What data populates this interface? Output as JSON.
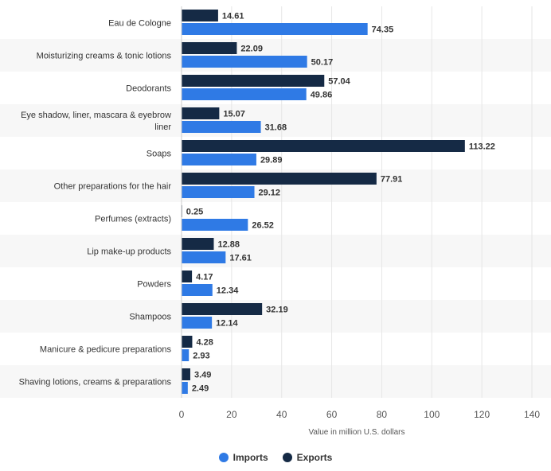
{
  "chart_data": {
    "type": "bar",
    "orientation": "horizontal",
    "categories": [
      "Eau de Cologne",
      "Moisturizing creams & tonic lotions",
      "Deodorants",
      "Eye shadow, liner, mascara & eyebrow liner",
      "Soaps",
      "Other preparations for the hair",
      "Perfumes (extracts)",
      "Lip make-up products",
      "Powders",
      "Shampoos",
      "Manicure & pedicure preparations",
      "Shaving lotions, creams & preparations"
    ],
    "series": [
      {
        "name": "Exports",
        "color": "#152a45",
        "values": [
          14.61,
          22.09,
          57.04,
          15.07,
          113.22,
          77.91,
          0.25,
          12.88,
          4.17,
          32.19,
          4.28,
          3.49
        ]
      },
      {
        "name": "Imports",
        "color": "#2f7ae5",
        "values": [
          74.35,
          50.17,
          49.86,
          31.68,
          29.89,
          29.12,
          26.52,
          17.61,
          12.34,
          12.14,
          2.93,
          2.49
        ]
      }
    ],
    "xlabel": "Value in million U.S. dollars",
    "xlim": [
      0,
      140
    ],
    "xticks": [
      0,
      20,
      40,
      60,
      80,
      100,
      120,
      140
    ],
    "grid": true,
    "legend_position": "bottom",
    "legend_order": [
      "Imports",
      "Exports"
    ]
  }
}
